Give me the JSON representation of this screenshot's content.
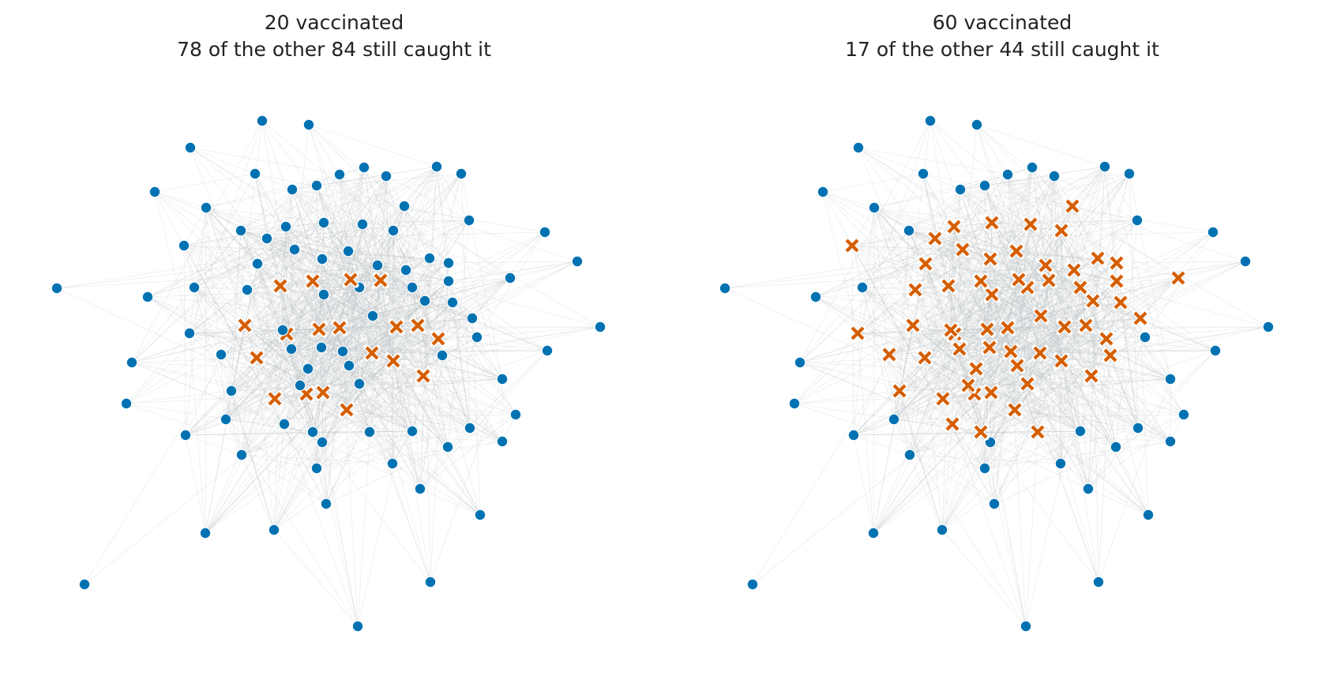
{
  "colors": {
    "vaccinated": "#0072b2",
    "infected": "#d55e00",
    "edge": "#b8bcc0"
  },
  "node_icons": {
    "vaccinated": "circle-marker",
    "infected": "x-marker"
  },
  "panels": [
    {
      "title_line1": "20 vaccinated",
      "title_line2": "78 of the other 84 still caught it"
    },
    {
      "title_line1": "60 vaccinated",
      "title_line2": "17 of the other 44 still caught it"
    }
  ]
}
